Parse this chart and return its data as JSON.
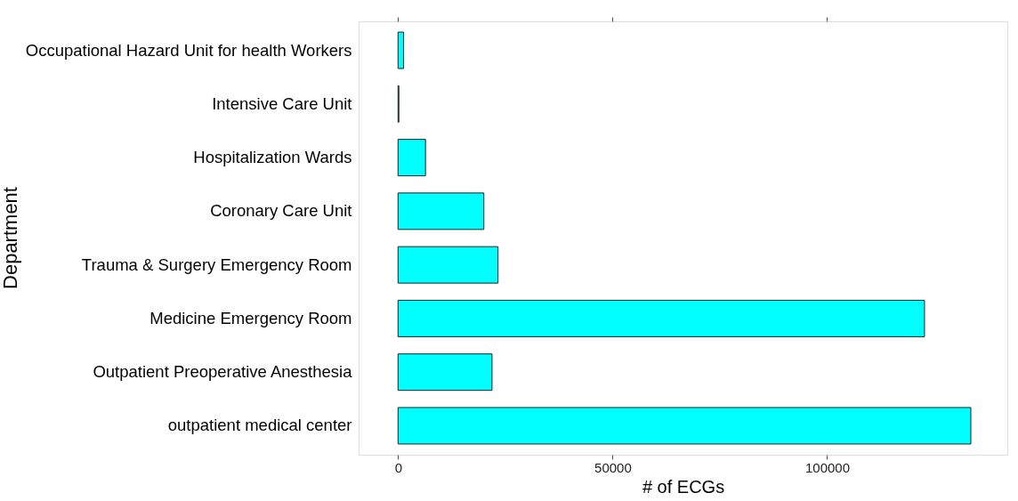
{
  "chart_data": {
    "type": "bar",
    "orientation": "horizontal",
    "xlabel": "# of ECGs",
    "ylabel": "Department",
    "categories": [
      "Occupational Hazard Unit for health Workers",
      "Intensive Care Unit",
      "Hospitalization Wards",
      "Coronary Care Unit",
      "Trauma & Surgery Emergency Room",
      "Medicine Emergency Room",
      "Outpatient Preoperative Anesthesia",
      "outpatient medical center"
    ],
    "values": [
      1300,
      200,
      6400,
      20000,
      23300,
      122700,
      21900,
      133500
    ],
    "color": "#00ffff",
    "xlim": [
      -9190,
      142000
    ],
    "xticks": [
      0,
      50000,
      100000
    ]
  }
}
